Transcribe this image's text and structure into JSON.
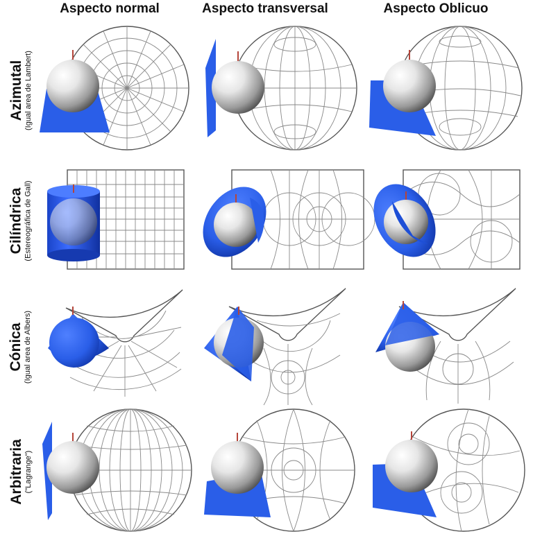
{
  "columns": [
    {
      "label": "Aspecto normal"
    },
    {
      "label": "Aspecto transversal"
    },
    {
      "label": "Aspecto Oblicuo"
    }
  ],
  "rows": [
    {
      "title": "Azimutal",
      "subtitle": "(Igual area de Lambert)"
    },
    {
      "title": "Cilíndrica",
      "subtitle": "(Estereográfica de Gall)"
    },
    {
      "title": "Cónica",
      "subtitle": "(Igual area de Albers)"
    },
    {
      "title": "Arbitraria",
      "subtitle": "(\"Lagrange\")"
    }
  ],
  "colors": {
    "projection_surface": "#2a5ee8",
    "grid_line": "#888888",
    "outline": "#555555",
    "globe_light": "#ffffff",
    "globe_dark": "#3a3a3a",
    "axis_spike": "#b5453a"
  }
}
